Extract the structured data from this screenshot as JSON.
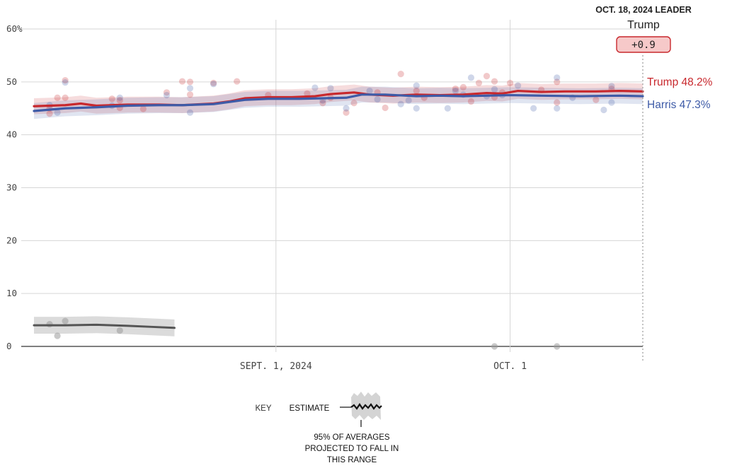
{
  "header": {
    "leader_date_label": "OCT. 18, 2024 LEADER",
    "leader_name": "Trump",
    "leader_margin": "+0.9"
  },
  "colors": {
    "trump": "#c8282d",
    "harris": "#3e5ba7",
    "other": "#555555",
    "grid": "#d6d6d6",
    "badge_fill": "#f6c9c9"
  },
  "labels": {
    "trump_end": "Trump 48.2%",
    "harris_end": "Harris 47.3%"
  },
  "key": {
    "title": "KEY",
    "estimate_label": "ESTIMATE",
    "range_note_line1": "95% OF AVERAGES",
    "range_note_line2": "PROJECTED TO FALL IN",
    "range_note_line3": "THIS RANGE"
  },
  "chart_data": {
    "type": "line",
    "x_type": "date",
    "x_range": [
      "2024-08-01",
      "2024-10-18"
    ],
    "y_range": [
      0,
      60
    ],
    "y_ticks": [
      0,
      10,
      20,
      30,
      40,
      50,
      60
    ],
    "y_tick_labels": [
      "0",
      "10",
      "20",
      "30",
      "40",
      "50",
      "60%"
    ],
    "x_ticks": [
      {
        "date": "2024-09-01",
        "label": "SEPT. 1, 2024"
      },
      {
        "date": "2024-10-01",
        "label": "OCT. 1"
      }
    ],
    "grid": true,
    "series": [
      {
        "name": "Trump",
        "color": "#c8282d",
        "band_halfwidth": 1.5,
        "points": [
          [
            "2024-08-01",
            45.4
          ],
          [
            "2024-08-05",
            45.6
          ],
          [
            "2024-08-07",
            45.9
          ],
          [
            "2024-08-09",
            45.5
          ],
          [
            "2024-08-13",
            45.7
          ],
          [
            "2024-08-17",
            45.7
          ],
          [
            "2024-08-20",
            45.6
          ],
          [
            "2024-08-24",
            45.9
          ],
          [
            "2024-08-26",
            46.3
          ],
          [
            "2024-08-28",
            46.9
          ],
          [
            "2024-08-31",
            47.1
          ],
          [
            "2024-09-03",
            47.1
          ],
          [
            "2024-09-06",
            47.3
          ],
          [
            "2024-09-08",
            47.7
          ],
          [
            "2024-09-11",
            48.0
          ],
          [
            "2024-09-13",
            47.6
          ],
          [
            "2024-09-16",
            47.4
          ],
          [
            "2024-09-19",
            47.6
          ],
          [
            "2024-09-22",
            47.5
          ],
          [
            "2024-09-25",
            47.6
          ],
          [
            "2024-09-28",
            47.9
          ],
          [
            "2024-09-30",
            47.8
          ],
          [
            "2024-10-02",
            48.3
          ],
          [
            "2024-10-05",
            48.1
          ],
          [
            "2024-10-08",
            48.2
          ],
          [
            "2024-10-12",
            48.2
          ],
          [
            "2024-10-15",
            48.3
          ],
          [
            "2024-10-18",
            48.2
          ]
        ]
      },
      {
        "name": "Harris",
        "color": "#3e5ba7",
        "band_halfwidth": 1.5,
        "points": [
          [
            "2024-08-01",
            44.5
          ],
          [
            "2024-08-05",
            45.0
          ],
          [
            "2024-08-09",
            45.2
          ],
          [
            "2024-08-13",
            45.5
          ],
          [
            "2024-08-17",
            45.6
          ],
          [
            "2024-08-20",
            45.6
          ],
          [
            "2024-08-24",
            45.8
          ],
          [
            "2024-08-26",
            46.2
          ],
          [
            "2024-08-28",
            46.6
          ],
          [
            "2024-08-31",
            46.8
          ],
          [
            "2024-09-04",
            46.8
          ],
          [
            "2024-09-07",
            46.9
          ],
          [
            "2024-09-10",
            47.0
          ],
          [
            "2024-09-12",
            47.6
          ],
          [
            "2024-09-15",
            47.6
          ],
          [
            "2024-09-19",
            47.3
          ],
          [
            "2024-09-22",
            47.4
          ],
          [
            "2024-09-25",
            47.3
          ],
          [
            "2024-09-28",
            47.4
          ],
          [
            "2024-10-01",
            47.5
          ],
          [
            "2024-10-05",
            47.4
          ],
          [
            "2024-10-10",
            47.3
          ],
          [
            "2024-10-15",
            47.4
          ],
          [
            "2024-10-18",
            47.3
          ]
        ]
      },
      {
        "name": "",
        "color": "#555555",
        "band_halfwidth": 1.6,
        "points": [
          [
            "2024-08-01",
            4.0
          ],
          [
            "2024-08-05",
            4.0
          ],
          [
            "2024-08-09",
            4.1
          ],
          [
            "2024-08-13",
            3.9
          ],
          [
            "2024-08-16",
            3.7
          ],
          [
            "2024-08-19",
            3.5
          ]
        ]
      }
    ],
    "poll_dots": {
      "trump": [
        [
          "2024-08-03",
          45.0
        ],
        [
          "2024-08-03",
          44.0
        ],
        [
          "2024-08-04",
          47.0
        ],
        [
          "2024-08-05",
          50.3
        ],
        [
          "2024-08-05",
          47.0
        ],
        [
          "2024-08-11",
          46.8
        ],
        [
          "2024-08-12",
          45.1
        ],
        [
          "2024-08-12",
          46.5
        ],
        [
          "2024-08-15",
          44.9
        ],
        [
          "2024-08-18",
          48.0
        ],
        [
          "2024-08-20",
          50.1
        ],
        [
          "2024-08-21",
          50.0
        ],
        [
          "2024-08-21",
          47.6
        ],
        [
          "2024-08-24",
          49.8
        ],
        [
          "2024-08-27",
          50.1
        ],
        [
          "2024-08-31",
          47.5
        ],
        [
          "2024-09-05",
          47.8
        ],
        [
          "2024-09-07",
          46.0
        ],
        [
          "2024-09-08",
          47.0
        ],
        [
          "2024-09-10",
          44.2
        ],
        [
          "2024-09-11",
          46.0
        ],
        [
          "2024-09-14",
          48.0
        ],
        [
          "2024-09-15",
          45.1
        ],
        [
          "2024-09-17",
          51.5
        ],
        [
          "2024-09-19",
          48.3
        ],
        [
          "2024-09-20",
          47.0
        ],
        [
          "2024-09-24",
          48.7
        ],
        [
          "2024-09-25",
          49.0
        ],
        [
          "2024-09-26",
          46.3
        ],
        [
          "2024-09-27",
          49.8
        ],
        [
          "2024-09-28",
          51.1
        ],
        [
          "2024-09-29",
          50.1
        ],
        [
          "2024-09-29",
          47.1
        ],
        [
          "2024-09-30",
          48.0
        ],
        [
          "2024-10-01",
          49.8
        ],
        [
          "2024-10-05",
          48.5
        ],
        [
          "2024-10-07",
          50.0
        ],
        [
          "2024-10-07",
          46.1
        ],
        [
          "2024-10-12",
          46.6
        ],
        [
          "2024-10-14",
          48.7
        ]
      ],
      "harris": [
        [
          "2024-08-03",
          45.6
        ],
        [
          "2024-08-04",
          44.2
        ],
        [
          "2024-08-05",
          49.9
        ],
        [
          "2024-08-11",
          45.5
        ],
        [
          "2024-08-12",
          47.0
        ],
        [
          "2024-08-18",
          47.5
        ],
        [
          "2024-08-21",
          44.2
        ],
        [
          "2024-08-21",
          48.8
        ],
        [
          "2024-08-24",
          49.6
        ],
        [
          "2024-09-06",
          48.9
        ],
        [
          "2024-09-07",
          46.5
        ],
        [
          "2024-09-08",
          48.8
        ],
        [
          "2024-09-10",
          45.0
        ],
        [
          "2024-09-13",
          48.3
        ],
        [
          "2024-09-14",
          46.7
        ],
        [
          "2024-09-17",
          45.8
        ],
        [
          "2024-09-18",
          46.5
        ],
        [
          "2024-09-19",
          49.3
        ],
        [
          "2024-09-19",
          45.0
        ],
        [
          "2024-09-23",
          45.0
        ],
        [
          "2024-09-24",
          48.3
        ],
        [
          "2024-09-25",
          47.6
        ],
        [
          "2024-09-26",
          50.8
        ],
        [
          "2024-09-28",
          47.3
        ],
        [
          "2024-09-29",
          48.6
        ],
        [
          "2024-09-30",
          47.5
        ],
        [
          "2024-10-02",
          49.3
        ],
        [
          "2024-10-04",
          45.0
        ],
        [
          "2024-10-07",
          50.8
        ],
        [
          "2024-10-07",
          45.0
        ],
        [
          "2024-10-09",
          47.0
        ],
        [
          "2024-10-13",
          44.7
        ],
        [
          "2024-10-14",
          46.1
        ],
        [
          "2024-10-14",
          49.2
        ]
      ],
      "other": [
        [
          "2024-08-03",
          4.2
        ],
        [
          "2024-08-04",
          2.0
        ],
        [
          "2024-08-05",
          4.8
        ],
        [
          "2024-08-12",
          3.0
        ],
        [
          "2024-09-29",
          0.0
        ],
        [
          "2024-10-07",
          0.0
        ]
      ]
    }
  }
}
